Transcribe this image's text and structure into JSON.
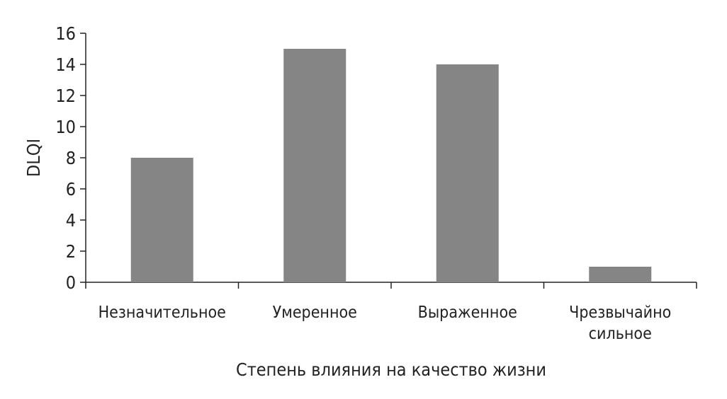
{
  "chart_data": {
    "type": "bar",
    "title": "",
    "xlabel": "Степень влияния на качество жизни",
    "ylabel": "DLQI",
    "categories": [
      [
        "Незначительное"
      ],
      [
        "Умеренное"
      ],
      [
        "Выраженное"
      ],
      [
        "Чрезвычайно",
        "сильное"
      ]
    ],
    "values": [
      8,
      15,
      14,
      1
    ],
    "ylim": [
      0,
      16
    ],
    "yticks": [
      0,
      2,
      4,
      6,
      8,
      10,
      12,
      14,
      16
    ],
    "grid": false,
    "legend": "none",
    "colors": {
      "bar": "#858585",
      "axis": "#222222",
      "text": "#222222"
    }
  }
}
